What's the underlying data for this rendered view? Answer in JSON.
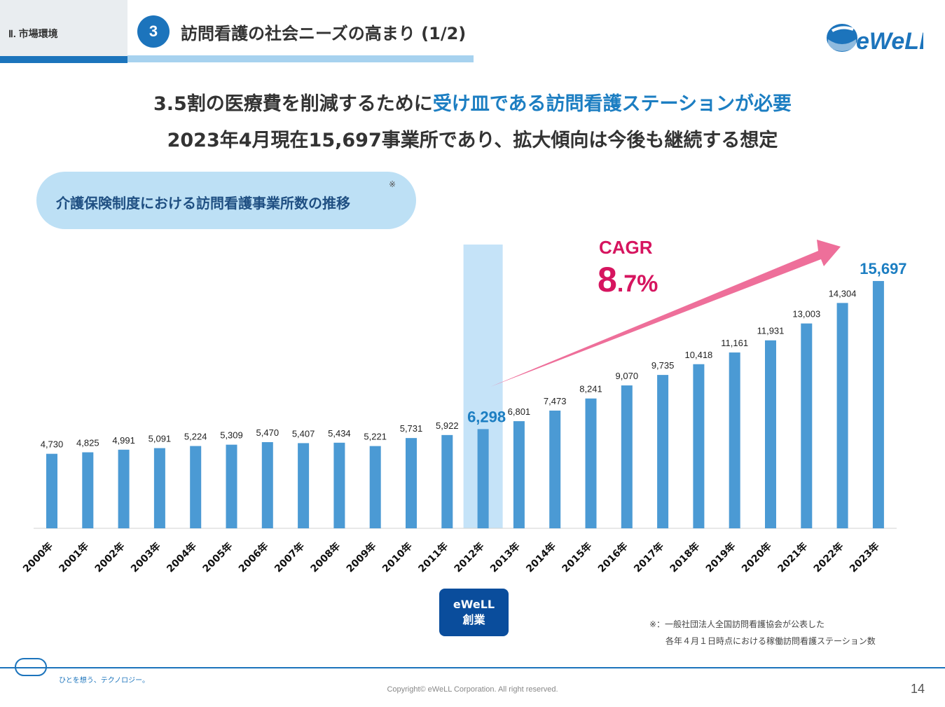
{
  "header": {
    "section": "Ⅱ. 市場環境",
    "number": "3",
    "title": "訪問看護の社会ニーズの高まり (1/2)",
    "logo_text": "eWeLL"
  },
  "headline": {
    "line1_a": "3.5割の医療費を削減するために",
    "line1_b": "受け皿である訪問看護ステーションが必要",
    "line2": "2023年4月現在15,697事業所であり、拡大傾向は今後も継続する想定"
  },
  "chart_section": {
    "title": "介護保険制度における訪問看護事業所数の推移",
    "note_mark": "※"
  },
  "chart_data": {
    "type": "bar",
    "categories": [
      "2000年",
      "2001年",
      "2002年",
      "2003年",
      "2004年",
      "2005年",
      "2006年",
      "2007年",
      "2008年",
      "2009年",
      "2010年",
      "2011年",
      "2012年",
      "2013年",
      "2014年",
      "2015年",
      "2016年",
      "2017年",
      "2018年",
      "2019年",
      "2020年",
      "2021年",
      "2022年",
      "2023年"
    ],
    "values": [
      4730,
      4825,
      4991,
      5091,
      5224,
      5309,
      5470,
      5407,
      5434,
      5221,
      5731,
      5922,
      6298,
      6801,
      7473,
      8241,
      9070,
      9735,
      10418,
      11161,
      11931,
      13003,
      14304,
      15697
    ],
    "value_labels": [
      "4,730",
      "4,825",
      "4,991",
      "5,091",
      "5,224",
      "5,309",
      "5,470",
      "5,407",
      "5,434",
      "5,221",
      "5,731",
      "5,922",
      "6,298",
      "6,801",
      "7,473",
      "8,241",
      "9,070",
      "9,735",
      "10,418",
      "11,161",
      "11,931",
      "13,003",
      "14,304",
      "15,697"
    ],
    "highlight": [
      "2012年",
      "2023年"
    ],
    "ylim": [
      0,
      16500
    ],
    "cagr_label": "CAGR",
    "cagr_value_big": "8",
    "cagr_value_small": ".7%",
    "colors": {
      "bar": "#4b9ad4",
      "highlight_band": "#c5e3f8",
      "highlight_text": "#1c7ec2",
      "arrow": "#ee6f9a",
      "cagr": "#d6155f"
    }
  },
  "ewell_founding": {
    "line1": "eWeLL",
    "line2": "創業"
  },
  "notes": {
    "line1": "※：一般社団法人全国訪問看護協会が公表した",
    "line2": "各年４月１日時点における稼働訪問看護ステーション数"
  },
  "footer": {
    "tagline": "ひとを想う、テクノロジー。",
    "copyright": "Copyright© eWeLL Corporation. All right reserved.",
    "page": "14"
  }
}
